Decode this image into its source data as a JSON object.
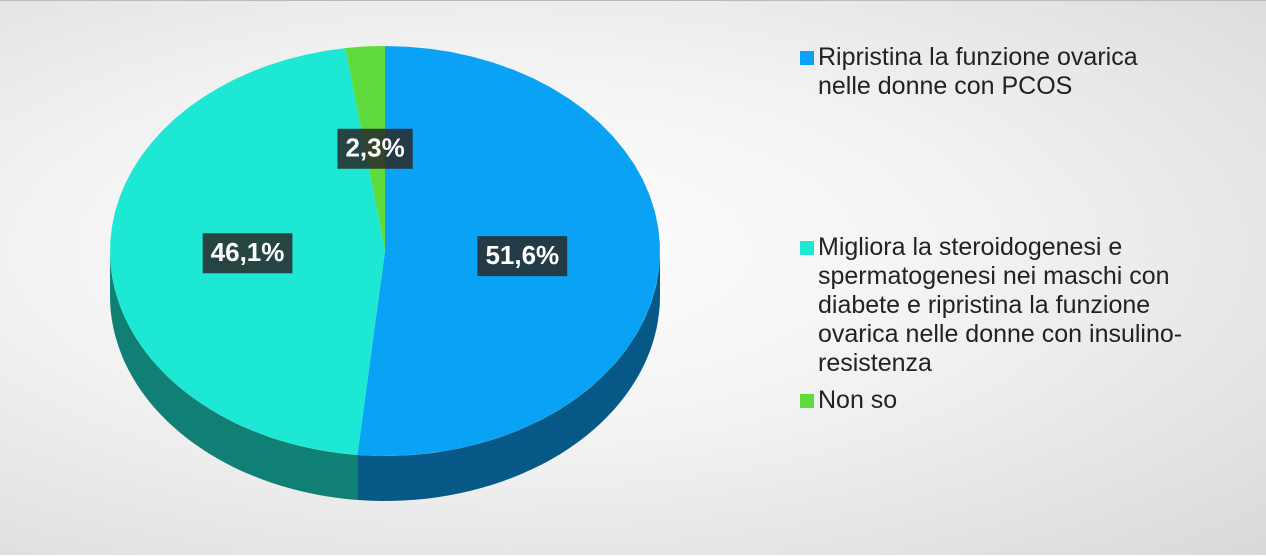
{
  "chart_data": {
    "type": "pie",
    "categories": [
      "Ripristina la funzione ovarica nelle donne con PCOS",
      "Migliora la steroidogenesi e spermatogenesi nei maschi con diabete e ripristina la funzione ovarica nelle donne con insulino-resistenza",
      "Non so"
    ],
    "values": [
      51.6,
      46.1,
      2.3
    ],
    "value_labels": [
      "51,6%",
      "46,1%",
      "2,3%"
    ],
    "colors": [
      "#0aa2f5",
      "#1de8d4",
      "#5fdc3c"
    ],
    "legend": "right"
  }
}
